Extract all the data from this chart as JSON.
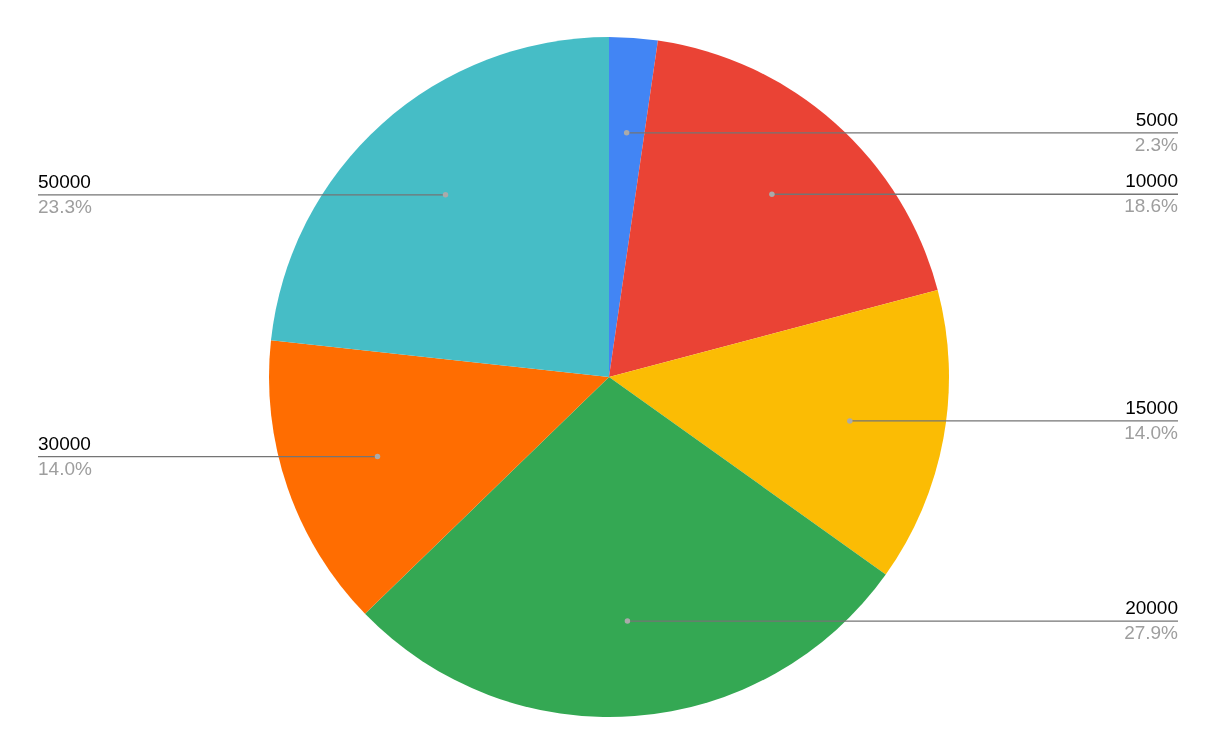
{
  "chart_data": {
    "type": "pie",
    "categories": [
      "5000",
      "10000",
      "15000",
      "20000",
      "30000",
      "50000"
    ],
    "values": [
      2.3,
      18.6,
      14.0,
      27.9,
      14.0,
      23.3
    ],
    "value_labels": [
      "2.3%",
      "18.6%",
      "14.0%",
      "27.9%",
      "14.0%",
      "23.3%"
    ],
    "colors": [
      "#4285f4",
      "#ea4335",
      "#fbbc04",
      "#34a853",
      "#ff6d01",
      "#46bdc6"
    ]
  }
}
